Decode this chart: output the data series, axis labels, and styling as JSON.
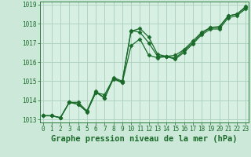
{
  "xlabel": "Graphe pression niveau de la mer (hPa)",
  "background_color": "#cce8d8",
  "plot_bg_color": "#d8f0e4",
  "grid_color": "#aacfba",
  "line_color": "#1a6b2a",
  "spine_color": "#2a7a3a",
  "xlim": [
    -0.3,
    23.3
  ],
  "ylim": [
    1012.85,
    1019.15
  ],
  "yticks": [
    1013,
    1014,
    1015,
    1016,
    1017,
    1018,
    1019
  ],
  "xticks": [
    0,
    1,
    2,
    3,
    4,
    5,
    6,
    7,
    8,
    9,
    10,
    11,
    12,
    13,
    14,
    15,
    16,
    17,
    18,
    19,
    20,
    21,
    22,
    23
  ],
  "series": [
    [
      1013.2,
      1013.2,
      1013.1,
      1013.9,
      1013.9,
      1013.45,
      1014.5,
      1014.1,
      1015.2,
      1015.0,
      1017.65,
      1017.55,
      1017.0,
      1016.3,
      1016.3,
      1016.2,
      1016.6,
      1017.0,
      1017.5,
      1017.8,
      1017.8,
      1018.4,
      1018.5,
      1018.85
    ],
    [
      1013.2,
      1013.2,
      1013.1,
      1013.9,
      1013.8,
      1013.4,
      1014.4,
      1014.3,
      1015.15,
      1014.95,
      1017.6,
      1017.75,
      1017.3,
      1016.4,
      1016.3,
      1016.35,
      1016.65,
      1017.1,
      1017.55,
      1017.8,
      1017.85,
      1018.4,
      1018.5,
      1018.9
    ],
    [
      1013.2,
      1013.2,
      1013.1,
      1013.9,
      1013.8,
      1013.42,
      1014.42,
      1014.12,
      1015.12,
      1014.92,
      1016.85,
      1017.2,
      1016.35,
      1016.22,
      1016.28,
      1016.15,
      1016.5,
      1016.95,
      1017.42,
      1017.72,
      1017.72,
      1018.3,
      1018.42,
      1018.78
    ]
  ],
  "marker": "D",
  "markersize": 2.5,
  "linewidth": 0.9,
  "xlabel_fontsize": 7.5,
  "tick_fontsize": 5.5,
  "tick_color": "#1a6b2a"
}
